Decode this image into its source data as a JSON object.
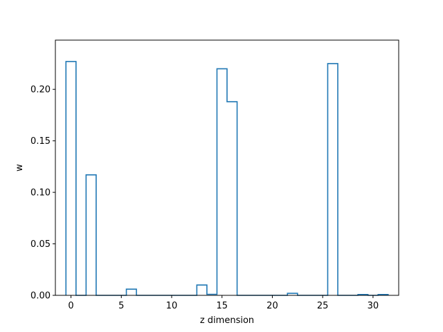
{
  "chart_data": {
    "type": "bar",
    "style": "step",
    "title": "",
    "xlabel": "z dimension",
    "ylabel": "w",
    "xlim": [
      -1.55,
      32.55
    ],
    "ylim": [
      0,
      0.2478
    ],
    "grid": false,
    "x_ticks": [
      0,
      5,
      10,
      15,
      20,
      25,
      30
    ],
    "y_ticks": [
      0.0,
      0.05,
      0.1,
      0.15,
      0.2
    ],
    "x_tick_labels": [
      "0",
      "5",
      "10",
      "15",
      "20",
      "25",
      "30"
    ],
    "y_tick_labels": [
      "0.00",
      "0.05",
      "0.10",
      "0.15",
      "0.20"
    ],
    "line_color": "#1f77b4",
    "x": [
      0,
      1,
      2,
      3,
      4,
      5,
      6,
      7,
      8,
      9,
      10,
      11,
      12,
      13,
      14,
      15,
      16,
      17,
      18,
      19,
      20,
      21,
      22,
      23,
      24,
      25,
      26,
      27,
      28,
      29,
      30,
      31
    ],
    "values": [
      0.227,
      0.0,
      0.117,
      0.0,
      0.0,
      0.0,
      0.006,
      0.0,
      0.0,
      0.0,
      0.0,
      0.0,
      0.0,
      0.01,
      0.001,
      0.22,
      0.188,
      0.0,
      0.0,
      0.0,
      0.0,
      0.0,
      0.002,
      0.0,
      0.0,
      0.0,
      0.225,
      0.0,
      0.0,
      0.0008,
      0.0,
      0.0008
    ]
  }
}
